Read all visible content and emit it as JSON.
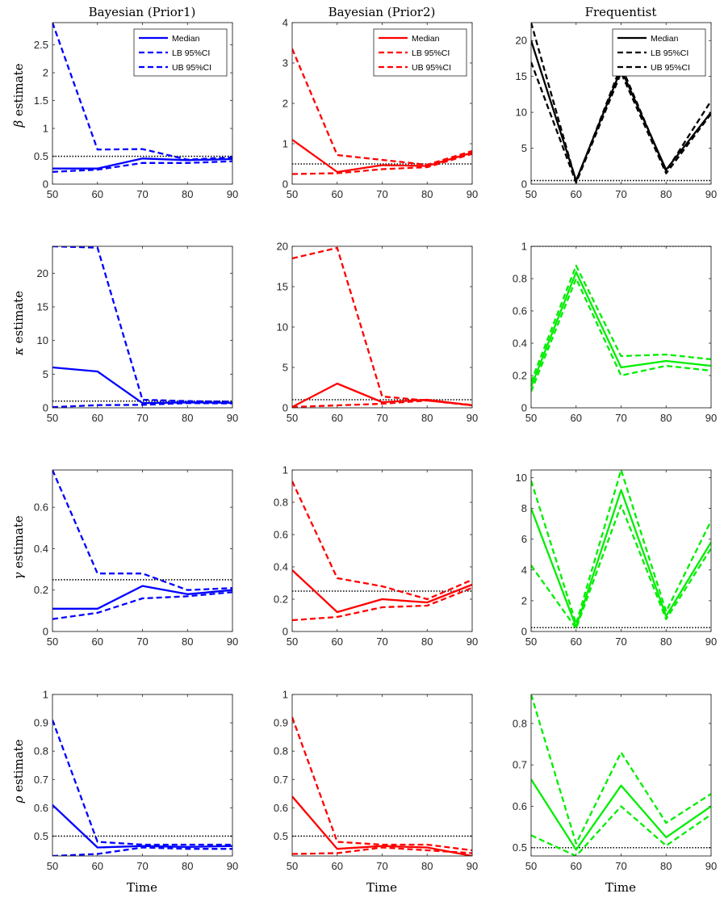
{
  "figure": {
    "column_titles": [
      "Bayesian (Prior1)",
      "Bayesian (Prior2)",
      "Frequentist"
    ],
    "row_ylabels": [
      {
        "symbol": "β",
        "text": " estimate"
      },
      {
        "symbol": "κ",
        "text": " estimate"
      },
      {
        "symbol": "γ",
        "text": " estimate"
      },
      {
        "symbol": "ρ",
        "text": " estimate"
      }
    ],
    "xlabel": "Time",
    "legend_labels": [
      "Median",
      "LB 95%CI",
      "UB 95%CI"
    ],
    "colors": {
      "prior1": "#0000ff",
      "prior2": "#ff0000",
      "freq_beta": "#000000",
      "freq_other": "#00ee00",
      "true_value": "#000000"
    }
  },
  "chart_data": [
    {
      "type": "line",
      "row": 0,
      "col": 0,
      "color": "#0000ff",
      "x": [
        50,
        60,
        70,
        80,
        90
      ],
      "xlim": [
        50,
        90
      ],
      "xticks": [
        50,
        60,
        70,
        80,
        90
      ],
      "ylim": [
        0,
        2.9
      ],
      "yticks": [
        0,
        0.5,
        1,
        1.5,
        2,
        2.5
      ],
      "ytick_labels": [
        "0",
        "0.5",
        "1",
        "1.5",
        "2",
        "2.5"
      ],
      "true_value": 0.5,
      "legend": true,
      "series": [
        {
          "name": "Median",
          "values": [
            0.28,
            0.28,
            0.46,
            0.43,
            0.45
          ]
        },
        {
          "name": "LB 95%CI",
          "values": [
            0.22,
            0.26,
            0.38,
            0.38,
            0.41
          ]
        },
        {
          "name": "UB 95%CI",
          "values": [
            2.9,
            0.62,
            0.63,
            0.44,
            0.48
          ]
        }
      ]
    },
    {
      "type": "line",
      "row": 0,
      "col": 1,
      "color": "#ff0000",
      "x": [
        50,
        60,
        70,
        80,
        90
      ],
      "xlim": [
        50,
        90
      ],
      "xticks": [
        50,
        60,
        70,
        80,
        90
      ],
      "ylim": [
        0,
        4
      ],
      "yticks": [
        0,
        1,
        2,
        3,
        4
      ],
      "ytick_labels": [
        "0",
        "1",
        "2",
        "3",
        "4"
      ],
      "true_value": 0.5,
      "legend": true,
      "series": [
        {
          "name": "Median",
          "values": [
            1.1,
            0.3,
            0.47,
            0.45,
            0.78
          ]
        },
        {
          "name": "LB 95%CI",
          "values": [
            0.25,
            0.27,
            0.37,
            0.42,
            0.75
          ]
        },
        {
          "name": "UB 95%CI",
          "values": [
            3.35,
            0.72,
            0.6,
            0.48,
            0.82
          ]
        }
      ]
    },
    {
      "type": "line",
      "row": 0,
      "col": 2,
      "color": "#000000",
      "x": [
        50,
        60,
        70,
        80,
        90
      ],
      "xlim": [
        50,
        90
      ],
      "xticks": [
        50,
        60,
        70,
        80,
        90
      ],
      "ylim": [
        0,
        22.5
      ],
      "yticks": [
        0,
        5,
        10,
        15,
        20
      ],
      "ytick_labels": [
        "0",
        "5",
        "10",
        "15",
        "20"
      ],
      "true_value": 0.5,
      "legend": true,
      "series": [
        {
          "name": "Median",
          "values": [
            20,
            0.5,
            16,
            2,
            10
          ]
        },
        {
          "name": "LB 95%CI",
          "values": [
            17,
            0.2,
            15.5,
            1.5,
            9.8
          ]
        },
        {
          "name": "UB 95%CI",
          "values": [
            22.5,
            0.3,
            16.5,
            1.8,
            11.6
          ]
        }
      ]
    },
    {
      "type": "line",
      "row": 1,
      "col": 0,
      "color": "#0000ff",
      "x": [
        50,
        60,
        70,
        80,
        90
      ],
      "xlim": [
        50,
        90
      ],
      "xticks": [
        50,
        60,
        70,
        80,
        90
      ],
      "ylim": [
        0,
        24
      ],
      "yticks": [
        0,
        5,
        10,
        15,
        20
      ],
      "ytick_labels": [
        "0",
        "5",
        "10",
        "15",
        "20"
      ],
      "true_value": 1.0,
      "legend": false,
      "series": [
        {
          "name": "Median",
          "values": [
            6,
            5.4,
            0.7,
            0.8,
            0.75
          ]
        },
        {
          "name": "LB 95%CI",
          "values": [
            0.1,
            0.4,
            0.45,
            0.7,
            0.65
          ]
        },
        {
          "name": "UB 95%CI",
          "values": [
            24,
            23.8,
            1.2,
            1.0,
            0.9
          ]
        }
      ]
    },
    {
      "type": "line",
      "row": 1,
      "col": 1,
      "color": "#ff0000",
      "x": [
        50,
        60,
        70,
        80,
        90
      ],
      "xlim": [
        50,
        90
      ],
      "xticks": [
        50,
        60,
        70,
        80,
        90
      ],
      "ylim": [
        0,
        20
      ],
      "yticks": [
        0,
        5,
        10,
        15,
        20
      ],
      "ytick_labels": [
        "0",
        "5",
        "10",
        "15",
        "20"
      ],
      "true_value": 1.0,
      "legend": false,
      "series": [
        {
          "name": "Median",
          "values": [
            0.1,
            3.0,
            0.7,
            1.0,
            0.3
          ]
        },
        {
          "name": "LB 95%CI",
          "values": [
            0.1,
            0.3,
            0.5,
            0.9,
            0.3
          ]
        },
        {
          "name": "UB 95%CI",
          "values": [
            18.5,
            19.8,
            1.4,
            0.9,
            0.35
          ]
        }
      ]
    },
    {
      "type": "line",
      "row": 1,
      "col": 2,
      "color": "#00ee00",
      "x": [
        50,
        60,
        70,
        80,
        90
      ],
      "xlim": [
        50,
        90
      ],
      "xticks": [
        50,
        60,
        70,
        80,
        90
      ],
      "ylim": [
        0,
        1
      ],
      "yticks": [
        0,
        0.2,
        0.4,
        0.6,
        0.8,
        1
      ],
      "ytick_labels": [
        "0",
        "0.2",
        "0.4",
        "0.6",
        "0.8",
        "1"
      ],
      "true_value": 1.0,
      "legend": false,
      "series": [
        {
          "name": "Median",
          "values": [
            0.13,
            0.84,
            0.25,
            0.29,
            0.26
          ]
        },
        {
          "name": "LB 95%CI",
          "values": [
            0.1,
            0.8,
            0.2,
            0.26,
            0.23
          ]
        },
        {
          "name": "UB 95%CI",
          "values": [
            0.16,
            0.88,
            0.32,
            0.33,
            0.3
          ]
        }
      ]
    },
    {
      "type": "line",
      "row": 2,
      "col": 0,
      "color": "#0000ff",
      "x": [
        50,
        60,
        70,
        80,
        90
      ],
      "xlim": [
        50,
        90
      ],
      "xticks": [
        50,
        60,
        70,
        80,
        90
      ],
      "ylim": [
        0,
        0.78
      ],
      "yticks": [
        0,
        0.2,
        0.4,
        0.6
      ],
      "ytick_labels": [
        "0",
        "0.2",
        "0.4",
        "0.6"
      ],
      "true_value": 0.25,
      "legend": false,
      "series": [
        {
          "name": "Median",
          "values": [
            0.11,
            0.11,
            0.22,
            0.18,
            0.2
          ]
        },
        {
          "name": "LB 95%CI",
          "values": [
            0.06,
            0.09,
            0.16,
            0.17,
            0.19
          ]
        },
        {
          "name": "UB 95%CI",
          "values": [
            0.78,
            0.28,
            0.28,
            0.2,
            0.21
          ]
        }
      ]
    },
    {
      "type": "line",
      "row": 2,
      "col": 1,
      "color": "#ff0000",
      "x": [
        50,
        60,
        70,
        80,
        90
      ],
      "xlim": [
        50,
        90
      ],
      "xticks": [
        50,
        60,
        70,
        80,
        90
      ],
      "ylim": [
        0,
        1
      ],
      "yticks": [
        0,
        0.2,
        0.4,
        0.6,
        0.8,
        1
      ],
      "ytick_labels": [
        "0",
        "0.2",
        "0.4",
        "0.6",
        "0.8",
        "1"
      ],
      "true_value": 0.25,
      "legend": false,
      "series": [
        {
          "name": "Median",
          "values": [
            0.38,
            0.12,
            0.2,
            0.18,
            0.29
          ]
        },
        {
          "name": "LB 95%CI",
          "values": [
            0.07,
            0.09,
            0.15,
            0.16,
            0.27
          ]
        },
        {
          "name": "UB 95%CI",
          "values": [
            0.93,
            0.33,
            0.28,
            0.2,
            0.32
          ]
        }
      ]
    },
    {
      "type": "line",
      "row": 2,
      "col": 2,
      "color": "#00ee00",
      "x": [
        50,
        60,
        70,
        80,
        90
      ],
      "xlim": [
        50,
        90
      ],
      "xticks": [
        50,
        60,
        70,
        80,
        90
      ],
      "ylim": [
        0,
        10.5
      ],
      "yticks": [
        0,
        2,
        4,
        6,
        8,
        10
      ],
      "ytick_labels": [
        "0",
        "2",
        "4",
        "6",
        "8",
        "10"
      ],
      "true_value": 0.25,
      "legend": false,
      "series": [
        {
          "name": "Median",
          "values": [
            8,
            0.3,
            9.2,
            1.0,
            5.8
          ]
        },
        {
          "name": "LB 95%CI",
          "values": [
            4.3,
            0.2,
            8.2,
            0.8,
            5.4
          ]
        },
        {
          "name": "UB 95%CI",
          "values": [
            9.8,
            0.5,
            10.5,
            1.3,
            7.2
          ]
        }
      ]
    },
    {
      "type": "line",
      "row": 3,
      "col": 0,
      "color": "#0000ff",
      "x": [
        50,
        60,
        70,
        80,
        90
      ],
      "xlim": [
        50,
        90
      ],
      "xticks": [
        50,
        60,
        70,
        80,
        90
      ],
      "ylim": [
        0.43,
        1
      ],
      "yticks": [
        0.5,
        0.6,
        0.7,
        0.8,
        0.9,
        1
      ],
      "ytick_labels": [
        "0.5",
        "0.6",
        "0.7",
        "0.8",
        "0.9",
        "1"
      ],
      "true_value": 0.5,
      "legend": false,
      "series": [
        {
          "name": "Median",
          "values": [
            0.61,
            0.46,
            0.465,
            0.462,
            0.465
          ]
        },
        {
          "name": "LB 95%CI",
          "values": [
            0.43,
            0.437,
            0.46,
            0.455,
            0.455
          ]
        },
        {
          "name": "UB 95%CI",
          "values": [
            0.91,
            0.48,
            0.47,
            0.47,
            0.47
          ]
        }
      ]
    },
    {
      "type": "line",
      "row": 3,
      "col": 1,
      "color": "#ff0000",
      "x": [
        50,
        60,
        70,
        80,
        90
      ],
      "xlim": [
        50,
        90
      ],
      "xticks": [
        50,
        60,
        70,
        80,
        90
      ],
      "ylim": [
        0.43,
        1
      ],
      "yticks": [
        0.5,
        0.6,
        0.7,
        0.8,
        0.9,
        1
      ],
      "ytick_labels": [
        "0.5",
        "0.6",
        "0.7",
        "0.8",
        "0.9",
        "1"
      ],
      "true_value": 0.5,
      "legend": false,
      "series": [
        {
          "name": "Median",
          "values": [
            0.64,
            0.455,
            0.465,
            0.46,
            0.43
          ]
        },
        {
          "name": "LB 95%CI",
          "values": [
            0.437,
            0.44,
            0.46,
            0.45,
            0.44
          ]
        },
        {
          "name": "UB 95%CI",
          "values": [
            0.92,
            0.48,
            0.47,
            0.47,
            0.45
          ]
        }
      ]
    },
    {
      "type": "line",
      "row": 3,
      "col": 2,
      "color": "#00ee00",
      "x": [
        50,
        60,
        70,
        80,
        90
      ],
      "xlim": [
        50,
        90
      ],
      "xticks": [
        50,
        60,
        70,
        80,
        90
      ],
      "ylim": [
        0.48,
        0.87
      ],
      "yticks": [
        0.5,
        0.6,
        0.7,
        0.8
      ],
      "ytick_labels": [
        "0.5",
        "0.6",
        "0.7",
        "0.8"
      ],
      "true_value": 0.5,
      "legend": false,
      "series": [
        {
          "name": "Median",
          "values": [
            0.665,
            0.495,
            0.65,
            0.525,
            0.6
          ]
        },
        {
          "name": "LB 95%CI",
          "values": [
            0.53,
            0.48,
            0.6,
            0.505,
            0.58
          ]
        },
        {
          "name": "UB 95%CI",
          "values": [
            0.87,
            0.51,
            0.73,
            0.56,
            0.63
          ]
        }
      ]
    }
  ]
}
